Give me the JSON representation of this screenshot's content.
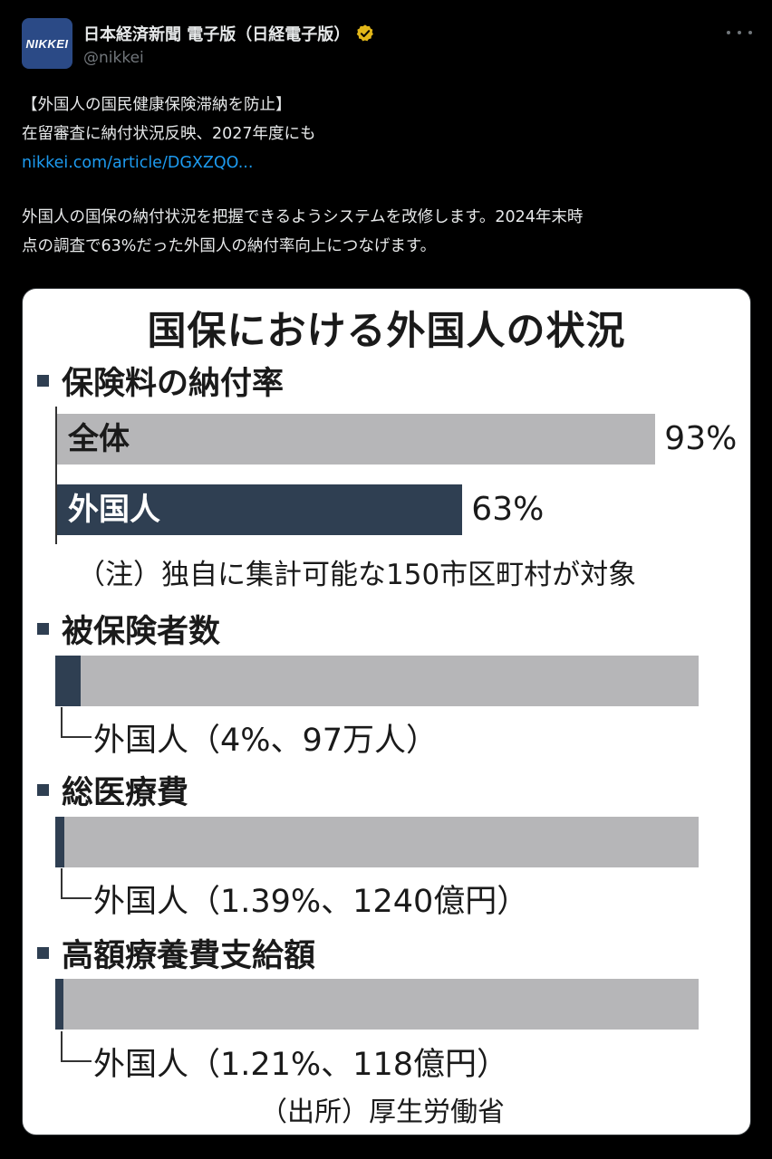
{
  "account": {
    "avatar_text": "NIKKEI",
    "display_name": "日本経済新聞 電子版（日経電子版）",
    "handle": "@nikkei",
    "verified_icon": "verified-gold-badge-icon"
  },
  "tweet": {
    "line1": "【外国人の国民健康保険滞納を防止】",
    "line2": "在留審査に納付状況反映、2027年度にも",
    "link": "nikkei.com/article/DGXZQO...",
    "body_line1": "外国人の国保の納付状況を把握できるようシステムを改修します。2024年末時",
    "body_line2": "点の調査で63%だった外国人の納付率向上につなげます。"
  },
  "infographic": {
    "title": "国保における外国人の状況",
    "sections": {
      "payment_rate": {
        "title": "保険料の納付率",
        "bars": [
          {
            "label": "全体",
            "value_text": "93%",
            "value": 93
          },
          {
            "label": "外国人",
            "value_text": "63%",
            "value": 63
          }
        ],
        "note": "（注）独自に集計可能な150市区町村が対象"
      },
      "insured": {
        "title": "被保険者数",
        "label": "外国人（4%、97万人）",
        "share_percent": 4
      },
      "medical_cost": {
        "title": "総医療費",
        "label": "外国人（1.39%、1240億円）",
        "share_percent": 1.39
      },
      "high_cost": {
        "title": "高額療養費支給額",
        "label": "外国人（1.21%、118億円）",
        "share_percent": 1.21
      }
    },
    "source": "（出所）厚生労働省"
  },
  "colors": {
    "navy": "#2f3f52",
    "grey_bar": "#b6b6b8",
    "link": "#1d9bf0",
    "verified": "#e2b719"
  }
}
